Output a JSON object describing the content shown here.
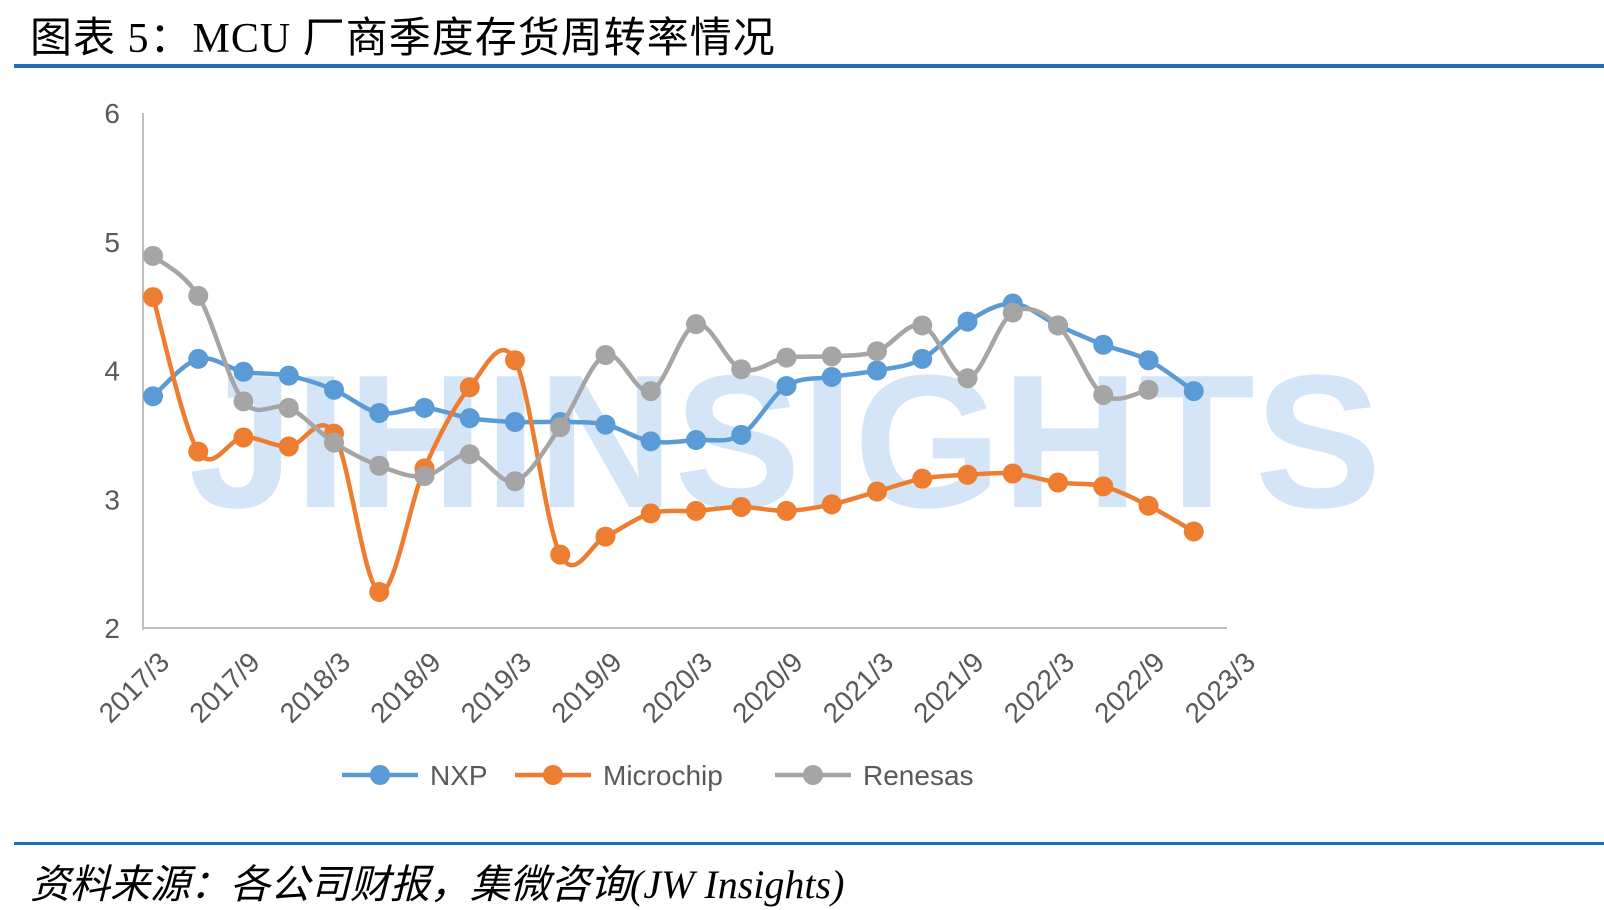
{
  "title": "图表 5：MCU 厂商季度存货周转率情况",
  "source": "资料来源：各公司财报，集微咨询(JW Insights)",
  "watermark": "JIHINSIGHTS",
  "chart_data": {
    "type": "line",
    "x": [
      "2017/3",
      "2017/6",
      "2017/9",
      "2017/12",
      "2018/3",
      "2018/6",
      "2018/9",
      "2018/12",
      "2019/3",
      "2019/6",
      "2019/9",
      "2019/12",
      "2020/3",
      "2020/6",
      "2020/9",
      "2020/12",
      "2021/3",
      "2021/6",
      "2021/9",
      "2021/12",
      "2022/3",
      "2022/6",
      "2022/9",
      "2022/12",
      "2023/3"
    ],
    "x_tick_labels": [
      "2017/3",
      "2017/9",
      "2018/3",
      "2018/9",
      "2019/3",
      "2019/9",
      "2020/3",
      "2020/9",
      "2021/3",
      "2021/9",
      "2022/3",
      "2022/9",
      "2023/3"
    ],
    "ylim": [
      2,
      6
    ],
    "yticks": [
      2,
      3,
      4,
      5,
      6
    ],
    "legend_position": "bottom",
    "grid": false,
    "series": [
      {
        "name": "NXP",
        "color": "#5b9bd5",
        "values": [
          3.8,
          4.09,
          3.99,
          3.96,
          3.85,
          3.67,
          3.71,
          3.63,
          3.6,
          3.6,
          3.58,
          3.45,
          3.46,
          3.5,
          3.88,
          3.95,
          4.0,
          4.09,
          4.38,
          4.52,
          4.35,
          4.2,
          4.08,
          3.84,
          null
        ]
      },
      {
        "name": "Microchip",
        "color": "#ed7d31",
        "values": [
          4.57,
          3.37,
          3.48,
          3.41,
          3.51,
          2.28,
          3.24,
          3.87,
          4.08,
          2.57,
          2.71,
          2.89,
          2.91,
          2.94,
          2.91,
          2.96,
          3.06,
          3.16,
          3.19,
          3.2,
          3.13,
          3.1,
          2.95,
          2.75,
          null
        ]
      },
      {
        "name": "Renesas",
        "color": "#a5a5a5",
        "values": [
          4.89,
          4.58,
          3.76,
          3.71,
          3.44,
          3.26,
          3.18,
          3.35,
          3.14,
          3.56,
          4.12,
          3.84,
          4.36,
          4.01,
          4.1,
          4.11,
          4.15,
          4.35,
          3.94,
          4.45,
          4.35,
          3.81,
          3.85,
          null,
          null
        ]
      }
    ]
  }
}
